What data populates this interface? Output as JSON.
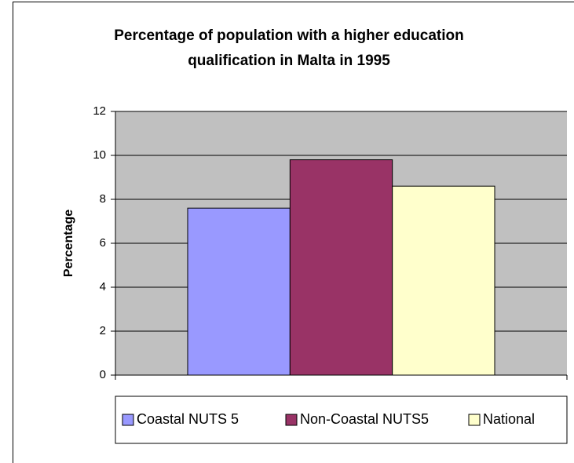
{
  "chart_data": {
    "type": "bar",
    "title": [
      "Percentage of population with a higher education",
      "qualification in Malta in 1995"
    ],
    "y_label": "Percentage",
    "series": [
      {
        "name": "Coastal NUTS 5",
        "color": "#9999ff",
        "values": [
          7.6
        ]
      },
      {
        "name": "Non-Coastal NUTS5",
        "color": "#993366",
        "values": [
          9.8
        ]
      },
      {
        "name": "National",
        "color": "#ffffcc",
        "values": [
          8.6
        ]
      }
    ],
    "ylim": [
      0,
      12
    ],
    "yticks": [
      0,
      2,
      4,
      6,
      8,
      10,
      12
    ],
    "grid": true,
    "plot_color": "#c0c0c0",
    "legend": "bottom"
  }
}
